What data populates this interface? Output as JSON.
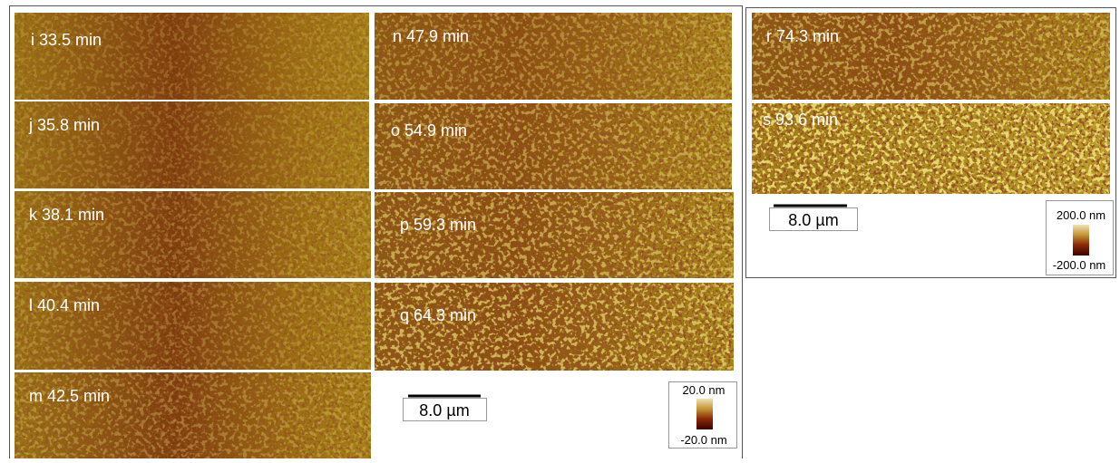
{
  "left_group": {
    "panels": [
      {
        "label": "i 33.5 min"
      },
      {
        "label": "j 35.8 min"
      },
      {
        "label": "k 38.1 min"
      },
      {
        "label": "l 40.4 min"
      },
      {
        "label": "m 42.5 min"
      },
      {
        "label": "n 47.9 min"
      },
      {
        "label": "o 54.9 min"
      },
      {
        "label": "p 59.3 min"
      },
      {
        "label": "q 64.3 min"
      }
    ],
    "scale_bar": "8.0 µm",
    "colorbar": {
      "max": "20.0 nm",
      "min": "-20.0 nm"
    }
  },
  "right_group": {
    "panels": [
      {
        "label": "r 74.3 min"
      },
      {
        "label": "s 93.6 min"
      }
    ],
    "scale_bar": "8.0 µm",
    "colorbar": {
      "max": "200.0 nm",
      "min": "-200.0 nm"
    }
  }
}
